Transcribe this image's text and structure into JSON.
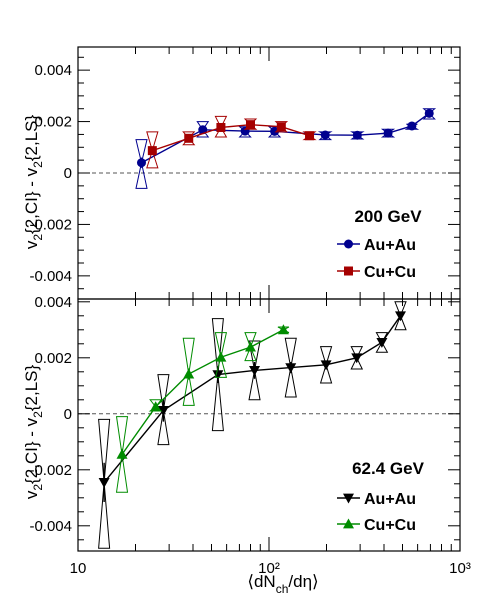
{
  "figure": {
    "x_axis_label": "⟨dN_ch/dη⟩",
    "y_axis_label": "v_2{2,CI} - v_2{2,LS}"
  },
  "chart_data": [
    {
      "type": "scatter",
      "panel": "top",
      "energy_label": "200 GeV",
      "x_scale": "log",
      "xlim": [
        10,
        1000
      ],
      "ylim": [
        -0.0049,
        0.0049
      ],
      "x_tick_labels": [
        "10",
        "10²",
        "10³"
      ],
      "y_tick_labels": [
        "-0.004",
        "-0.002",
        "0",
        "0.002",
        "0.004"
      ],
      "zero_line": "dashed",
      "legend_placement": "bottom-right",
      "series": [
        {
          "name": "Au+Au",
          "marker": "circle",
          "color": "#00008f",
          "x": [
            21.5,
            45,
            75,
            107,
            197,
            290,
            420,
            560,
            690
          ],
          "y": [
            0.0004,
            0.00168,
            0.00163,
            0.00162,
            0.00148,
            0.00147,
            0.00155,
            0.00183,
            0.00232
          ],
          "stat_err": [
            0.0002,
            0.00014,
            0.00013,
            0.00013,
            0.00013,
            0.00011,
            0.0001,
            0.0001,
            0.00014
          ],
          "syst_low": [
            -0.0006,
            0.0014,
            0.0014,
            0.0014,
            0.0013,
            0.00132,
            0.0014,
            0.0017,
            0.0021
          ],
          "syst_high": [
            0.0013,
            0.002,
            0.0018,
            0.0018,
            0.0016,
            0.0016,
            0.0017,
            0.0019,
            0.0025
          ]
        },
        {
          "name": "Cu+Cu",
          "marker": "square",
          "color": "#a50000",
          "x": [
            24.5,
            38,
            56,
            80,
            116,
            163
          ],
          "y": [
            0.00087,
            0.00135,
            0.00177,
            0.00188,
            0.0018,
            0.00145
          ],
          "stat_err": [
            0.00012,
            0.00012,
            0.00012,
            0.00012,
            0.00012,
            0.0001
          ],
          "syst_low": [
            0.0002,
            0.0011,
            0.0014,
            0.0017,
            0.0016,
            0.0013
          ],
          "syst_high": [
            0.0016,
            0.0016,
            0.0022,
            0.0021,
            0.002,
            0.0016
          ]
        }
      ]
    },
    {
      "type": "scatter",
      "panel": "bottom",
      "energy_label": "62.4 GeV",
      "x_scale": "log",
      "xlim": [
        10,
        1000
      ],
      "ylim": [
        -0.0049,
        0.0041
      ],
      "x_tick_labels": [
        "10",
        "10²",
        "10³"
      ],
      "y_tick_labels": [
        "-0.004",
        "-0.002",
        "0",
        "0.002",
        "0.004"
      ],
      "zero_line": "dashed",
      "legend_placement": "bottom-right",
      "series": [
        {
          "name": "Au+Au",
          "marker": "triangle-down",
          "color": "#000000",
          "x": [
            13.7,
            28,
            54,
            84,
            130,
            199,
            288,
            390,
            488
          ],
          "y": [
            -0.00245,
            0.00012,
            0.0014,
            0.00155,
            0.00165,
            0.00175,
            0.002,
            0.00255,
            0.0035
          ],
          "stat_err": [
            0.0007,
            0.0004,
            0.0003,
            0.0003,
            0.0002,
            0.00015,
            0.00013,
            0.00012,
            0.00015
          ],
          "syst_low": [
            -0.0048,
            -0.0011,
            -0.0006,
            0.0005,
            0.0006,
            0.0011,
            0.0016,
            0.0022,
            0.003
          ],
          "syst_high": [
            -0.0002,
            0.0014,
            0.0034,
            0.0026,
            0.0027,
            0.0024,
            0.0024,
            0.0029,
            0.004
          ]
        },
        {
          "name": "Cu+Cu",
          "marker": "triangle-up",
          "color": "#008c00",
          "x": [
            17,
            25.5,
            38,
            56,
            80,
            119
          ],
          "y": [
            -0.00145,
            0.00025,
            0.00142,
            0.00202,
            0.00238,
            0.003
          ],
          "stat_err": [
            0.0002,
            0.00015,
            0.0002,
            0.00015,
            0.00015,
            0.0001
          ],
          "syst_low": [
            -0.0028,
            0.0001,
            0.0003,
            0.0013,
            0.0019,
            0.0029
          ],
          "syst_high": [
            -0.0001,
            0.0005,
            0.0027,
            0.0029,
            0.0029,
            0.0031
          ]
        }
      ]
    }
  ]
}
